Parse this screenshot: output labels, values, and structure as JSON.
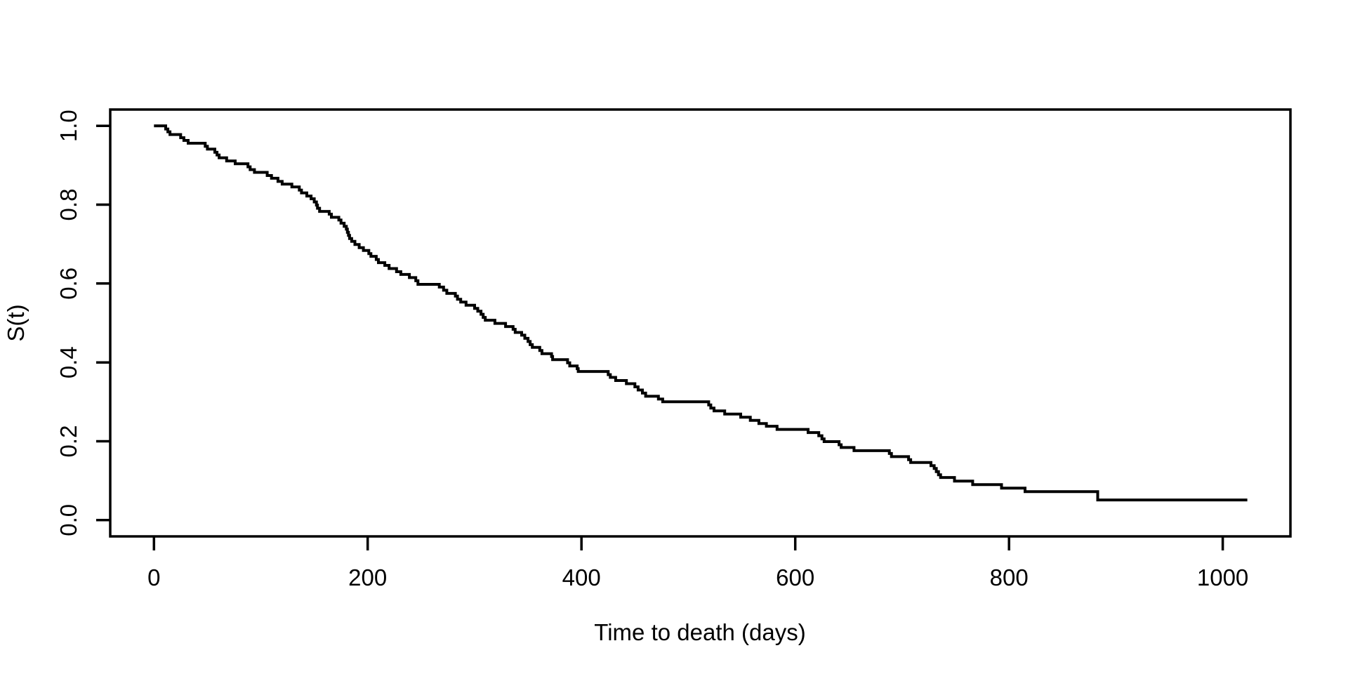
{
  "figure": {
    "background": "#ffffff",
    "foreground": "#000000"
  },
  "chart_data": {
    "type": "line",
    "subtype": "kaplan-meier-step-curve",
    "title": "",
    "xlabel": "Time to death (days)",
    "ylabel": "S(t)",
    "xlim": [
      -40.9,
      1063.3
    ],
    "ylim": [
      -0.0414,
      1.0414
    ],
    "x_ticks": [
      0,
      200,
      400,
      600,
      800,
      1000
    ],
    "y_ticks": [
      "0.0",
      "0.2",
      "0.4",
      "0.6",
      "0.8",
      "1.0"
    ],
    "grid": false,
    "legend": "none",
    "line_color": "#000000",
    "series": [
      {
        "name": "S(t)",
        "draw": "step-post",
        "curve_end_t": 1023,
        "points": [
          [
            0,
            1.0
          ],
          [
            11,
            0.992
          ],
          [
            13,
            0.985
          ],
          [
            15,
            0.978
          ],
          [
            25,
            0.97
          ],
          [
            28,
            0.963
          ],
          [
            32,
            0.956
          ],
          [
            48,
            0.948
          ],
          [
            50,
            0.941
          ],
          [
            57,
            0.933
          ],
          [
            59,
            0.926
          ],
          [
            61,
            0.919
          ],
          [
            68,
            0.911
          ],
          [
            76,
            0.904
          ],
          [
            88,
            0.896
          ],
          [
            90,
            0.889
          ],
          [
            94,
            0.882
          ],
          [
            106,
            0.874
          ],
          [
            110,
            0.867
          ],
          [
            116,
            0.859
          ],
          [
            120,
            0.852
          ],
          [
            129,
            0.845
          ],
          [
            136,
            0.837
          ],
          [
            138,
            0.83
          ],
          [
            143,
            0.822
          ],
          [
            147,
            0.815
          ],
          [
            150,
            0.807
          ],
          [
            152,
            0.799
          ],
          [
            153,
            0.791
          ],
          [
            155,
            0.783
          ],
          [
            164,
            0.776
          ],
          [
            166,
            0.768
          ],
          [
            173,
            0.761
          ],
          [
            175,
            0.753
          ],
          [
            178,
            0.745
          ],
          [
            180,
            0.738
          ],
          [
            181,
            0.73
          ],
          [
            182,
            0.722
          ],
          [
            183,
            0.714
          ],
          [
            185,
            0.707
          ],
          [
            188,
            0.699
          ],
          [
            192,
            0.691
          ],
          [
            196,
            0.684
          ],
          [
            201,
            0.676
          ],
          [
            203,
            0.669
          ],
          [
            208,
            0.661
          ],
          [
            210,
            0.653
          ],
          [
            216,
            0.646
          ],
          [
            220,
            0.638
          ],
          [
            227,
            0.63
          ],
          [
            231,
            0.623
          ],
          [
            239,
            0.615
          ],
          [
            245,
            0.607
          ],
          [
            247,
            0.598
          ],
          [
            267,
            0.591
          ],
          [
            271,
            0.583
          ],
          [
            274,
            0.575
          ],
          [
            282,
            0.568
          ],
          [
            284,
            0.56
          ],
          [
            287,
            0.553
          ],
          [
            292,
            0.545
          ],
          [
            300,
            0.537
          ],
          [
            303,
            0.53
          ],
          [
            306,
            0.522
          ],
          [
            308,
            0.514
          ],
          [
            310,
            0.507
          ],
          [
            319,
            0.499
          ],
          [
            329,
            0.491
          ],
          [
            336,
            0.484
          ],
          [
            338,
            0.476
          ],
          [
            344,
            0.469
          ],
          [
            347,
            0.461
          ],
          [
            350,
            0.453
          ],
          [
            352,
            0.445
          ],
          [
            354,
            0.438
          ],
          [
            361,
            0.43
          ],
          [
            363,
            0.422
          ],
          [
            372,
            0.415
          ],
          [
            373,
            0.407
          ],
          [
            387,
            0.399
          ],
          [
            389,
            0.391
          ],
          [
            396,
            0.384
          ],
          [
            397,
            0.377
          ],
          [
            425,
            0.369
          ],
          [
            427,
            0.362
          ],
          [
            432,
            0.354
          ],
          [
            442,
            0.346
          ],
          [
            450,
            0.338
          ],
          [
            453,
            0.33
          ],
          [
            457,
            0.322
          ],
          [
            460,
            0.314
          ],
          [
            472,
            0.307
          ],
          [
            476,
            0.3
          ],
          [
            519,
            0.292
          ],
          [
            521,
            0.284
          ],
          [
            524,
            0.277
          ],
          [
            534,
            0.269
          ],
          [
            549,
            0.261
          ],
          [
            558,
            0.253
          ],
          [
            566,
            0.245
          ],
          [
            573,
            0.238
          ],
          [
            583,
            0.23
          ],
          [
            612,
            0.222
          ],
          [
            622,
            0.214
          ],
          [
            625,
            0.206
          ],
          [
            627,
            0.199
          ],
          [
            641,
            0.191
          ],
          [
            643,
            0.184
          ],
          [
            655,
            0.176
          ],
          [
            688,
            0.169
          ],
          [
            690,
            0.161
          ],
          [
            706,
            0.153
          ],
          [
            708,
            0.146
          ],
          [
            727,
            0.138
          ],
          [
            730,
            0.131
          ],
          [
            732,
            0.123
          ],
          [
            734,
            0.115
          ],
          [
            736,
            0.108
          ],
          [
            749,
            0.099
          ],
          [
            766,
            0.09
          ],
          [
            793,
            0.081
          ],
          [
            815,
            0.072
          ],
          [
            883,
            0.051
          ]
        ]
      }
    ]
  }
}
